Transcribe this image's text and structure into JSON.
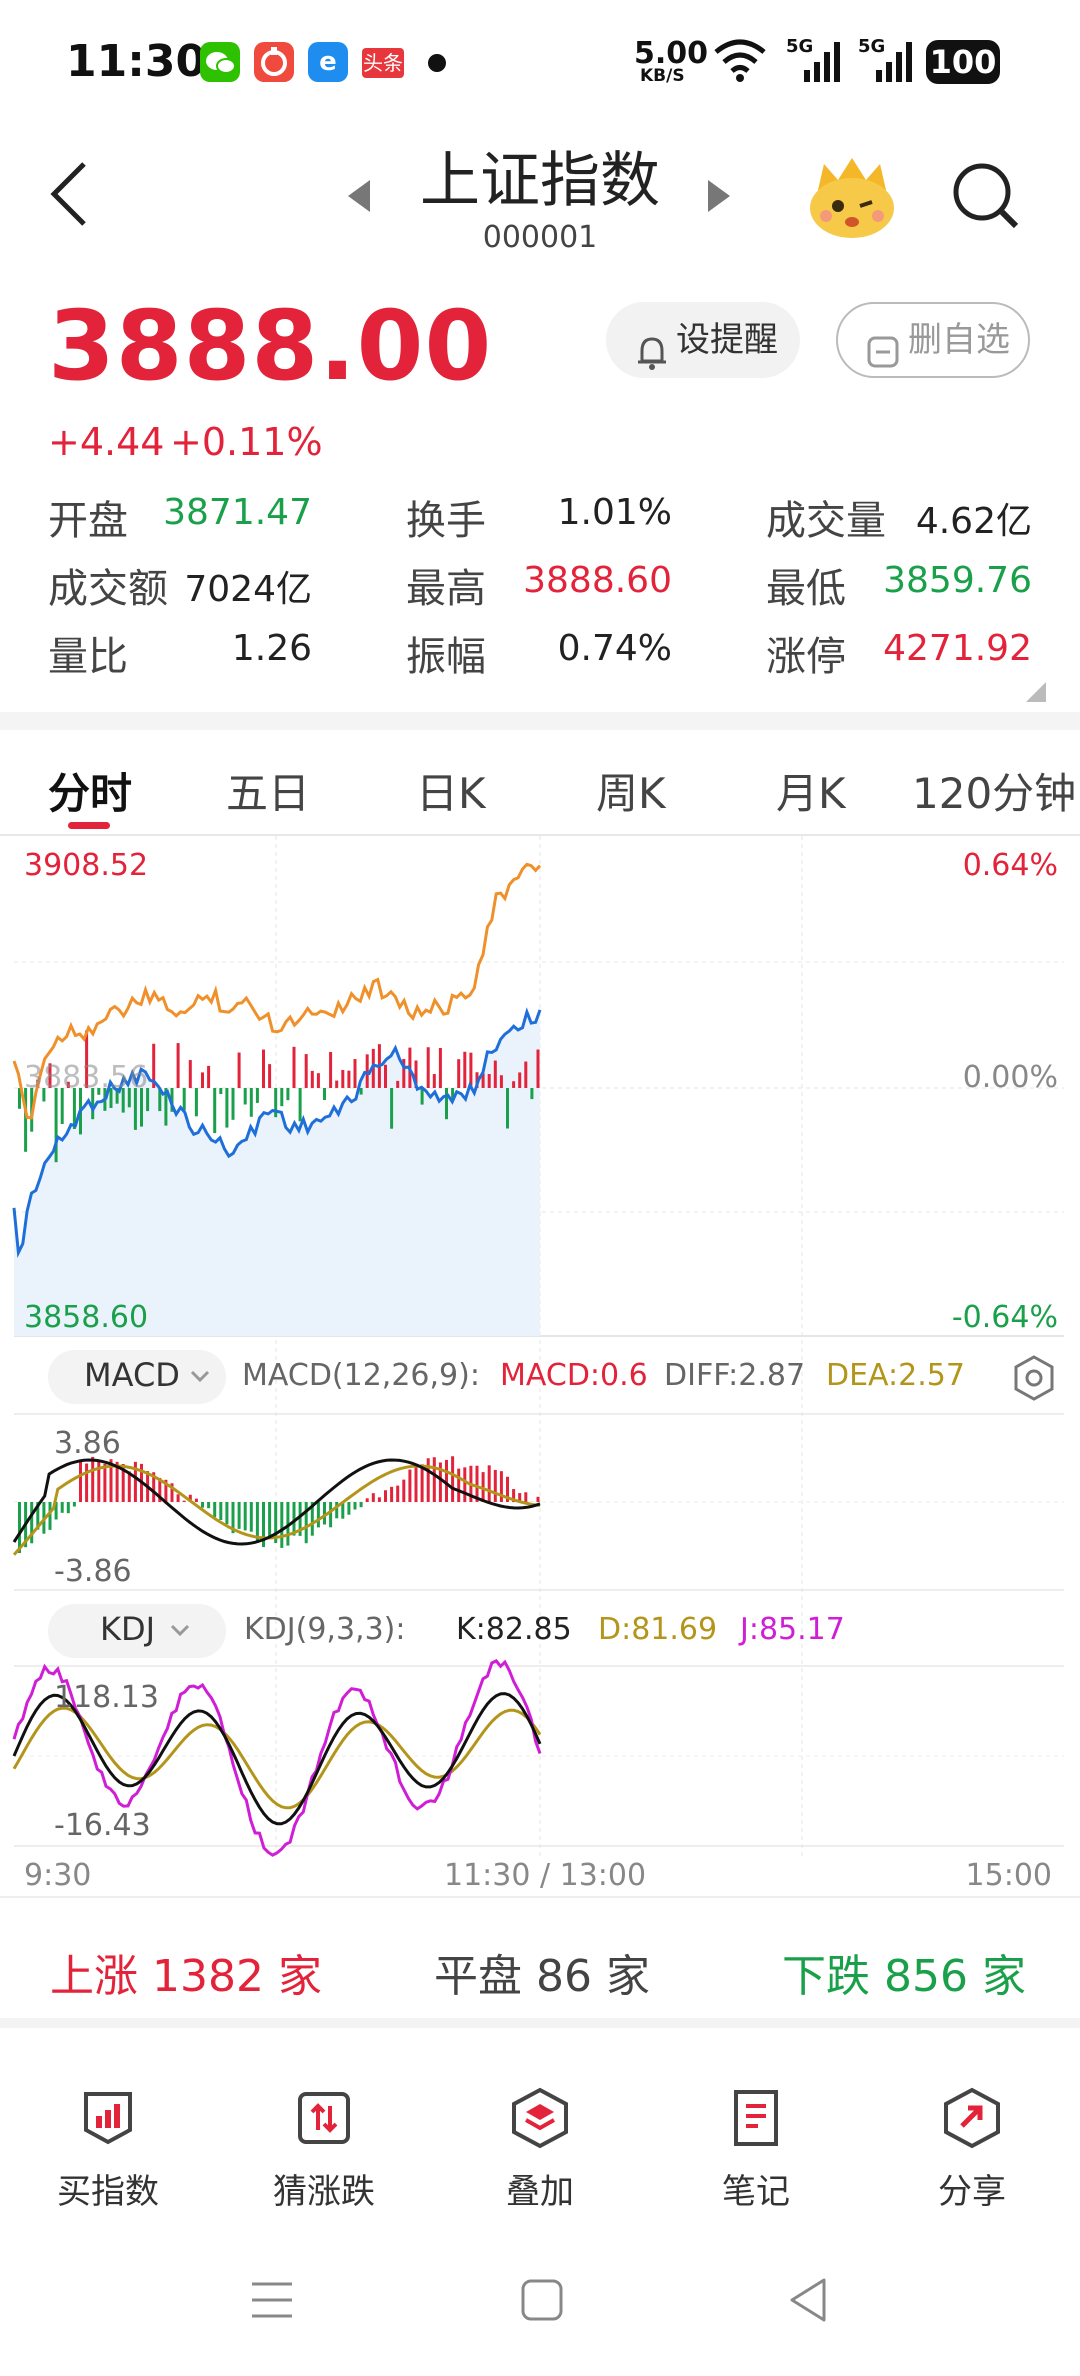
{
  "status_bar": {
    "time": "11:30",
    "net_speed": "5.00",
    "net_unit": "KB/S",
    "sig1": "5G",
    "sig2": "5G",
    "battery": "100",
    "app_icons": [
      "wechat-icon",
      "app-red-icon",
      "app-blue-icon",
      "toutiao-icon"
    ],
    "toutiao": "头条"
  },
  "header": {
    "title": "上证指数",
    "code": "000001"
  },
  "quote": {
    "price": "3888.00",
    "change": "+4.44",
    "change_pct": "+0.11%",
    "alert_btn": "设提醒",
    "remove_btn": "删自选"
  },
  "stats": [
    {
      "label": "开盘",
      "value": "3871.47",
      "color": "#1aa04a"
    },
    {
      "label": "换手",
      "value": "1.01%",
      "color": "#222222"
    },
    {
      "label": "成交量",
      "value": "4.62亿",
      "color": "#222222"
    },
    {
      "label": "成交额",
      "value": "7024亿",
      "color": "#222222"
    },
    {
      "label": "最高",
      "value": "3888.60",
      "color": "#e2233a"
    },
    {
      "label": "最低",
      "value": "3859.76",
      "color": "#1aa04a"
    },
    {
      "label": "量比",
      "value": "1.26",
      "color": "#222222"
    },
    {
      "label": "振幅",
      "value": "0.74%",
      "color": "#222222"
    },
    {
      "label": "涨停",
      "value": "4271.92",
      "color": "#e2233a"
    }
  ],
  "tabs": [
    "分时",
    "五日",
    "日K",
    "周K",
    "月K",
    "120分钟"
  ],
  "active_tab": "分时",
  "chart": {
    "y_top": "3908.52",
    "y_mid": "3883.56",
    "y_bot": "3858.60",
    "pct_top": "0.64%",
    "pct_mid": "0.00%",
    "pct_bot": "-0.64%",
    "x_labels": [
      "9:30",
      "11:30 / 13:00",
      "15:00"
    ]
  },
  "macd": {
    "selector": "MACD",
    "params": "MACD(12,26,9):",
    "macd": "MACD:0.6",
    "diff": "DIFF:2.87",
    "dea": "DEA:2.57",
    "y_top": "3.86",
    "y_bot": "-3.86"
  },
  "kdj": {
    "selector": "KDJ",
    "params": "KDJ(9,3,3):",
    "k": "K:82.85",
    "d": "D:81.69",
    "j": "J:85.17",
    "y_top": "118.13",
    "y_bot": "-16.43"
  },
  "breadth": {
    "up_label": "上涨",
    "up_count": "1382",
    "unit": "家",
    "flat_label": "平盘",
    "flat_count": "86",
    "down_label": "下跌",
    "down_count": "856"
  },
  "bottom_bar": [
    {
      "label": "买指数",
      "icon": "bar-chart-icon"
    },
    {
      "label": "猜涨跌",
      "icon": "guess-icon"
    },
    {
      "label": "叠加",
      "icon": "layers-icon"
    },
    {
      "label": "笔记",
      "icon": "note-icon"
    },
    {
      "label": "分享",
      "icon": "share-icon"
    }
  ],
  "colors": {
    "up": "#e2233a",
    "down": "#1aa04a",
    "price_line": "#1e6fd9",
    "avg_line": "#f0902a",
    "dea": "#b4951c",
    "j_line": "#d01ed6"
  }
}
